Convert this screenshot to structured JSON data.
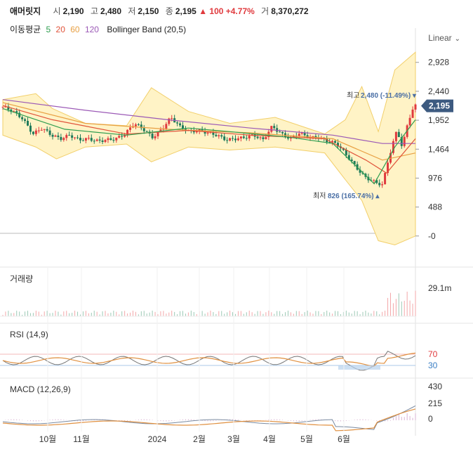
{
  "header": {
    "name": "애머릿지",
    "open_label": "시",
    "open": "2,190",
    "high_label": "고",
    "high": "2,480",
    "low_label": "저",
    "low": "2,150",
    "close_label": "종",
    "close": "2,195",
    "change": "▲ 100",
    "change_pct": "+4.77%",
    "volume_label": "거",
    "volume": "8,370,272"
  },
  "legend": {
    "label": "이동평균",
    "ma5": "5",
    "ma20": "20",
    "ma60": "60",
    "ma120": "120",
    "bb": "Bollinger Band (20,5)"
  },
  "scale_toggle": "Linear",
  "price_axis": [
    "2,928",
    "2,440",
    "1,952",
    "1,464",
    "976",
    "488",
    "-0"
  ],
  "last_price_tag": "2,195",
  "high_annotation": {
    "label": "최고",
    "value": "2,480 (-11.49%)"
  },
  "low_annotation": {
    "label": "최저",
    "value": "826 (165.74%)"
  },
  "volume_panel": {
    "title": "거래량",
    "max": "29.1m"
  },
  "rsi_panel": {
    "title": "RSI (14,9)",
    "upper": "70",
    "lower": "30"
  },
  "macd_panel": {
    "title": "MACD (12,26,9)",
    "ticks": [
      "430",
      "215",
      "0"
    ]
  },
  "x_axis": [
    "10월",
    "11월",
    "2024",
    "2월",
    "3월",
    "4월",
    "5월",
    "6월"
  ],
  "colors": {
    "up": "#e03a3e",
    "down": "#1e7a5a",
    "ma5": "#2e9d4f",
    "ma20": "#e0533a",
    "ma60": "#e8a043",
    "ma120": "#9b59b6",
    "bb_fill": "#fff3c6"
  },
  "chart_data": {
    "type": "candlestick",
    "price_range": [
      -50,
      3150
    ],
    "close_path": [
      [
        "2023-09-12",
        2180
      ],
      [
        "2023-09-20",
        2100
      ],
      [
        "2023-09-27",
        1980
      ],
      [
        "2023-10-05",
        1720
      ],
      [
        "2023-10-12",
        1820
      ],
      [
        "2023-10-19",
        1700
      ],
      [
        "2023-10-26",
        1640
      ],
      [
        "2023-11-02",
        1700
      ],
      [
        "2023-11-09",
        1620
      ],
      [
        "2023-11-16",
        1640
      ],
      [
        "2023-11-23",
        1600
      ],
      [
        "2023-11-30",
        1620
      ],
      [
        "2023-12-07",
        1640
      ],
      [
        "2023-12-14",
        1720
      ],
      [
        "2023-12-21",
        1900
      ],
      [
        "2023-12-28",
        1800
      ],
      [
        "2024-01-04",
        1660
      ],
      [
        "2024-01-11",
        1800
      ],
      [
        "2024-01-18",
        2000
      ],
      [
        "2024-01-25",
        1840
      ],
      [
        "2024-02-01",
        1760
      ],
      [
        "2024-02-08",
        1780
      ],
      [
        "2024-02-15",
        1740
      ],
      [
        "2024-02-22",
        1700
      ],
      [
        "2024-02-29",
        1620
      ],
      [
        "2024-03-07",
        1640
      ],
      [
        "2024-03-14",
        1660
      ],
      [
        "2024-03-21",
        1700
      ],
      [
        "2024-03-28",
        1620
      ],
      [
        "2024-04-04",
        1850
      ],
      [
        "2024-04-11",
        1720
      ],
      [
        "2024-04-18",
        1640
      ],
      [
        "2024-04-25",
        1740
      ],
      [
        "2024-05-02",
        1660
      ],
      [
        "2024-05-09",
        1660
      ],
      [
        "2024-05-16",
        1600
      ],
      [
        "2024-05-23",
        1560
      ],
      [
        "2024-05-30",
        1380
      ],
      [
        "2024-06-06",
        1180
      ],
      [
        "2024-06-13",
        1000
      ],
      [
        "2024-06-20",
        920
      ],
      [
        "2024-06-27",
        860
      ],
      [
        "2024-07-01",
        1260
      ],
      [
        "2024-07-08",
        1800
      ],
      [
        "2024-07-12",
        1480
      ],
      [
        "2024-07-16",
        1900
      ],
      [
        "2024-07-19",
        2095
      ],
      [
        "2024-07-22",
        2195
      ]
    ],
    "ma5": [
      [
        0,
        2150
      ],
      [
        0.15,
        1800
      ],
      [
        0.3,
        1700
      ],
      [
        0.45,
        1820
      ],
      [
        0.55,
        1760
      ],
      [
        0.7,
        1660
      ],
      [
        0.8,
        1560
      ],
      [
        0.9,
        880
      ],
      [
        0.95,
        1500
      ],
      [
        1,
        1960
      ]
    ],
    "ma20": [
      [
        0,
        2200
      ],
      [
        0.12,
        1960
      ],
      [
        0.3,
        1720
      ],
      [
        0.45,
        1780
      ],
      [
        0.6,
        1700
      ],
      [
        0.78,
        1640
      ],
      [
        0.88,
        1280
      ],
      [
        0.93,
        1060
      ],
      [
        1,
        1640
      ]
    ],
    "ma60": [
      [
        0,
        2250
      ],
      [
        0.2,
        1900
      ],
      [
        0.4,
        1800
      ],
      [
        0.6,
        1740
      ],
      [
        0.8,
        1640
      ],
      [
        0.92,
        1280
      ],
      [
        1,
        1400
      ]
    ],
    "ma120": [
      [
        0,
        2300
      ],
      [
        0.2,
        2120
      ],
      [
        0.4,
        1960
      ],
      [
        0.6,
        1820
      ],
      [
        0.8,
        1700
      ],
      [
        0.92,
        1560
      ],
      [
        1,
        1560
      ]
    ],
    "bb_upper": [
      [
        0,
        2300
      ],
      [
        0.08,
        2400
      ],
      [
        0.12,
        2150
      ],
      [
        0.2,
        1900
      ],
      [
        0.3,
        1860
      ],
      [
        0.36,
        2500
      ],
      [
        0.45,
        2100
      ],
      [
        0.55,
        1900
      ],
      [
        0.66,
        2000
      ],
      [
        0.78,
        1720
      ],
      [
        0.83,
        1960
      ],
      [
        0.87,
        2520
      ],
      [
        0.91,
        1760
      ],
      [
        0.95,
        2800
      ],
      [
        1,
        3100
      ]
    ],
    "bb_lower": [
      [
        0,
        1700
      ],
      [
        0.08,
        1500
      ],
      [
        0.13,
        1300
      ],
      [
        0.2,
        1500
      ],
      [
        0.3,
        1550
      ],
      [
        0.36,
        1250
      ],
      [
        0.45,
        1500
      ],
      [
        0.55,
        1450
      ],
      [
        0.66,
        1500
      ],
      [
        0.78,
        1400
      ],
      [
        0.83,
        950
      ],
      [
        0.87,
        600
      ],
      [
        0.91,
        -80
      ],
      [
        0.95,
        -150
      ],
      [
        1,
        0
      ]
    ],
    "high_point": [
      "2024-07-22",
      2480
    ],
    "low_point": [
      "2024-06-27",
      826
    ]
  }
}
